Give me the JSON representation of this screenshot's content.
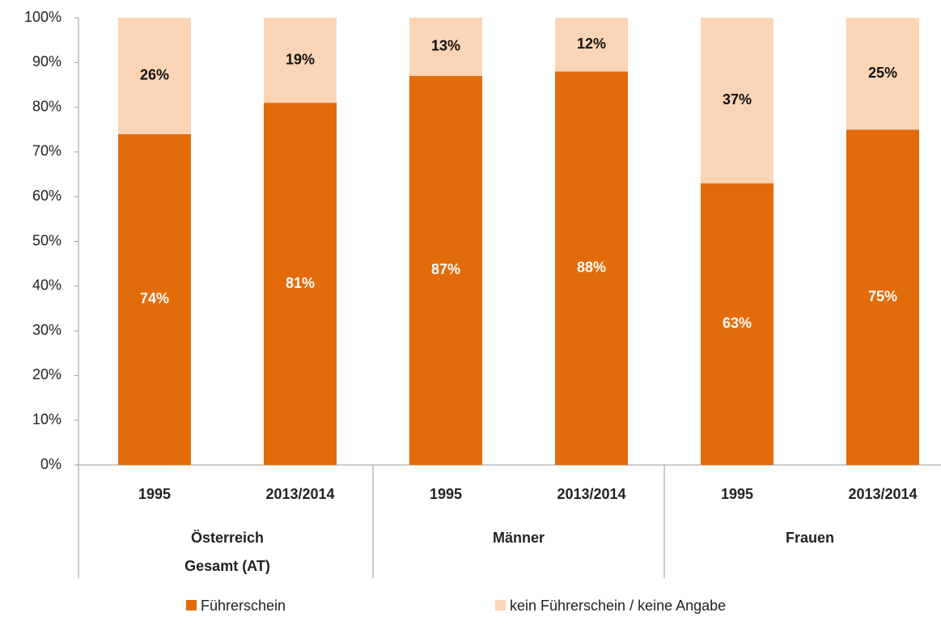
{
  "chart_data": {
    "type": "stacked_bar",
    "categories": [
      "1995",
      "2013/2014",
      "1995",
      "2013/2014",
      "1995",
      "2013/2014"
    ],
    "groups": [
      [
        "Österreich",
        "Gesamt (AT)"
      ],
      [
        "Männer"
      ],
      [
        "Frauen"
      ]
    ],
    "series": [
      {
        "name": "Führerschein",
        "color": "#e36c0a",
        "label_color": "#ffffff",
        "values": [
          74,
          81,
          87,
          88,
          63,
          75
        ],
        "value_labels": [
          "74%",
          "81%",
          "87%",
          "88%",
          "63%",
          "75%"
        ]
      },
      {
        "name": "kein Führerschein / keine Angabe",
        "color": "#fbd5b5",
        "label_color": "#111111",
        "values": [
          26,
          19,
          13,
          12,
          37,
          25
        ],
        "value_labels": [
          "26%",
          "19%",
          "13%",
          "12%",
          "37%",
          "25%"
        ]
      }
    ],
    "ylim": [
      0,
      100
    ],
    "yticks": [
      {
        "value": 0,
        "label": "0%"
      },
      {
        "value": 10,
        "label": "10%"
      },
      {
        "value": 20,
        "label": "20%"
      },
      {
        "value": 30,
        "label": "30%"
      },
      {
        "value": 40,
        "label": "40%"
      },
      {
        "value": 50,
        "label": "50%"
      },
      {
        "value": 60,
        "label": "60%"
      },
      {
        "value": 70,
        "label": "70%"
      },
      {
        "value": 80,
        "label": "80%"
      },
      {
        "value": 90,
        "label": "90%"
      },
      {
        "value": 100,
        "label": "100%"
      }
    ]
  }
}
